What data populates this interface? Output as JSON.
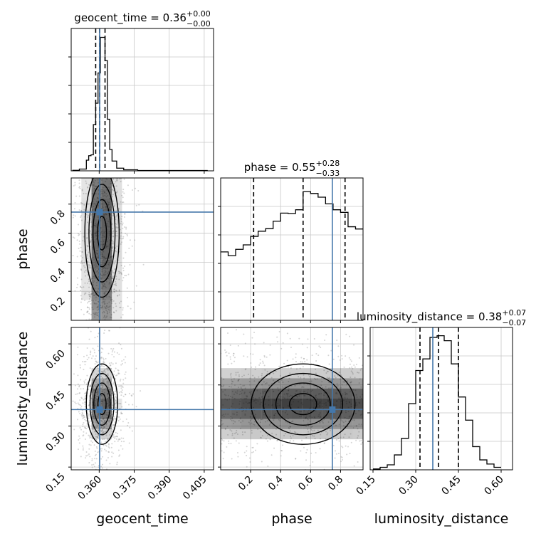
{
  "params": [
    "geocent_time",
    "phase",
    "luminosity_distance"
  ],
  "colors": {
    "truth": "#4477aa",
    "hist": "#000000",
    "quantile": "#000000",
    "grid": "#c8c8c8",
    "density": "#000000"
  },
  "chart_data": [
    {
      "type": "histogram",
      "param": "geocent_time",
      "title": "geocent_time = 0.36",
      "title_value": "0.36",
      "title_plus": "+0.00",
      "title_minus": "−0.00",
      "xlim": [
        0.348,
        0.409
      ],
      "bin_edges": [
        0.3485,
        0.3515,
        0.3545,
        0.3555,
        0.3565,
        0.3575,
        0.3585,
        0.3595,
        0.3605,
        0.3615,
        0.3625,
        0.3635,
        0.3645,
        0.3655,
        0.3675,
        0.3705,
        0.3765,
        0.4065
      ],
      "counts": [
        0.3,
        1.0,
        6.0,
        8.5,
        9.0,
        26.0,
        38.0,
        55.0,
        75.0,
        75.0,
        62.0,
        29.0,
        12.0,
        5.5,
        1.5,
        0.6,
        0.2
      ],
      "ymax": 80,
      "quantiles": [
        0.3585,
        0.3602,
        0.3625
      ],
      "truth": 0.3602
    },
    {
      "type": "histogram",
      "param": "phase",
      "title": "phase = 0.55",
      "title_value": "0.55",
      "title_plus": "+0.28",
      "title_minus": "−0.33",
      "xlim": [
        0.0,
        0.95
      ],
      "bin_edges": [
        0.0,
        0.05,
        0.1,
        0.15,
        0.2,
        0.25,
        0.3,
        0.35,
        0.4,
        0.45,
        0.5,
        0.55,
        0.6,
        0.65,
        0.7,
        0.75,
        0.8,
        0.85,
        0.9,
        0.95
      ],
      "counts": [
        1.85,
        1.75,
        1.92,
        2.04,
        2.27,
        2.41,
        2.48,
        2.68,
        2.9,
        2.89,
        2.99,
        3.48,
        3.43,
        3.33,
        3.15,
        2.99,
        2.92,
        2.53,
        2.47
      ],
      "ymax": 3.85,
      "quantiles": [
        0.22,
        0.55,
        0.83
      ],
      "truth": 0.745
    },
    {
      "type": "histogram",
      "param": "luminosity_distance",
      "title": "luminosity_distance = 0.38",
      "title_value": "0.38",
      "title_plus": "+0.07",
      "title_minus": "−0.07",
      "xlim": [
        0.14,
        0.64
      ],
      "bin_edges": [
        0.15,
        0.175,
        0.2,
        0.225,
        0.25,
        0.275,
        0.3,
        0.325,
        0.35,
        0.375,
        0.4,
        0.425,
        0.45,
        0.475,
        0.5,
        0.525,
        0.55,
        0.575,
        0.6
      ],
      "counts": [
        0.5,
        1.5,
        3.0,
        9.0,
        19.0,
        40.0,
        60.0,
        67.0,
        80.0,
        81.0,
        78.0,
        64.0,
        44.0,
        30.0,
        14.0,
        6.0,
        3.5,
        1.5
      ],
      "ymax": 86,
      "quantiles": [
        0.315,
        0.38,
        0.45
      ],
      "truth": 0.36
    },
    {
      "type": "scatter",
      "x_param": "geocent_time",
      "y_param": "phase",
      "xlim": [
        0.348,
        0.409
      ],
      "ylim": [
        0.0,
        0.98
      ],
      "center": [
        0.3612,
        0.6
      ],
      "spread": [
        0.0035,
        0.28
      ],
      "truth": [
        0.3602,
        0.745
      ]
    },
    {
      "type": "scatter",
      "x_param": "geocent_time",
      "y_param": "luminosity_distance",
      "xlim": [
        0.348,
        0.409
      ],
      "ylim": [
        0.14,
        0.66
      ],
      "center": [
        0.3612,
        0.38
      ],
      "spread": [
        0.0032,
        0.07
      ],
      "truth": [
        0.3602,
        0.36
      ]
    },
    {
      "type": "scatter",
      "x_param": "phase",
      "y_param": "luminosity_distance",
      "xlim": [
        0.0,
        0.95
      ],
      "ylim": [
        0.14,
        0.66
      ],
      "center": [
        0.55,
        0.38
      ],
      "spread": [
        0.3,
        0.07
      ],
      "truth": [
        0.745,
        0.36
      ]
    }
  ],
  "ticks": {
    "geocent_time": [
      "0.360",
      "0.375",
      "0.390",
      "0.405"
    ],
    "phase": [
      "0.2",
      "0.4",
      "0.6",
      "0.8"
    ],
    "luminosity_distance": [
      "0.15",
      "0.30",
      "0.45",
      "0.60"
    ]
  },
  "axis_labels": {
    "x": [
      "geocent_time",
      "phase",
      "luminosity_distance"
    ],
    "y": [
      "phase",
      "luminosity_distance"
    ]
  }
}
